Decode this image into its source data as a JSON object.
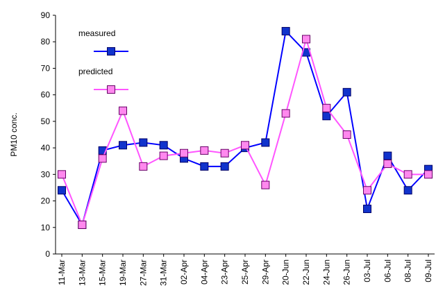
{
  "chart_data": {
    "type": "line",
    "y_label": "PM10 conc.",
    "categories": [
      "11-Mar",
      "13-Mar",
      "15-Mar",
      "19-Mar",
      "27-Mar",
      "31-Mar",
      "02-Apr",
      "04-Apr",
      "23-Apr",
      "25-Apr",
      "29-Apr",
      "20-Jun",
      "22-Jun",
      "24-Jun",
      "26-Jun",
      "03-Jul",
      "06-Jul",
      "08-Jul",
      "09-Jul"
    ],
    "series": [
      {
        "name": "measured",
        "color": "#0000ff",
        "marker_color": "#1133cc",
        "values": [
          24,
          11,
          39,
          41,
          42,
          41,
          36,
          33,
          33,
          40,
          42,
          84,
          76,
          52,
          61,
          17,
          37,
          24,
          32
        ]
      },
      {
        "name": "predicted",
        "color": "#ff55ff",
        "marker_color": "#ff88ee",
        "values": [
          30,
          11,
          36,
          54,
          33,
          37,
          38,
          39,
          38,
          41,
          26,
          53,
          81,
          55,
          45,
          24,
          34,
          30,
          30
        ]
      }
    ],
    "ylim": [
      0,
      90
    ],
    "yticks": [
      0,
      10,
      20,
      30,
      40,
      50,
      60,
      70,
      80,
      90
    ],
    "grid": false,
    "legend": "upper left"
  }
}
